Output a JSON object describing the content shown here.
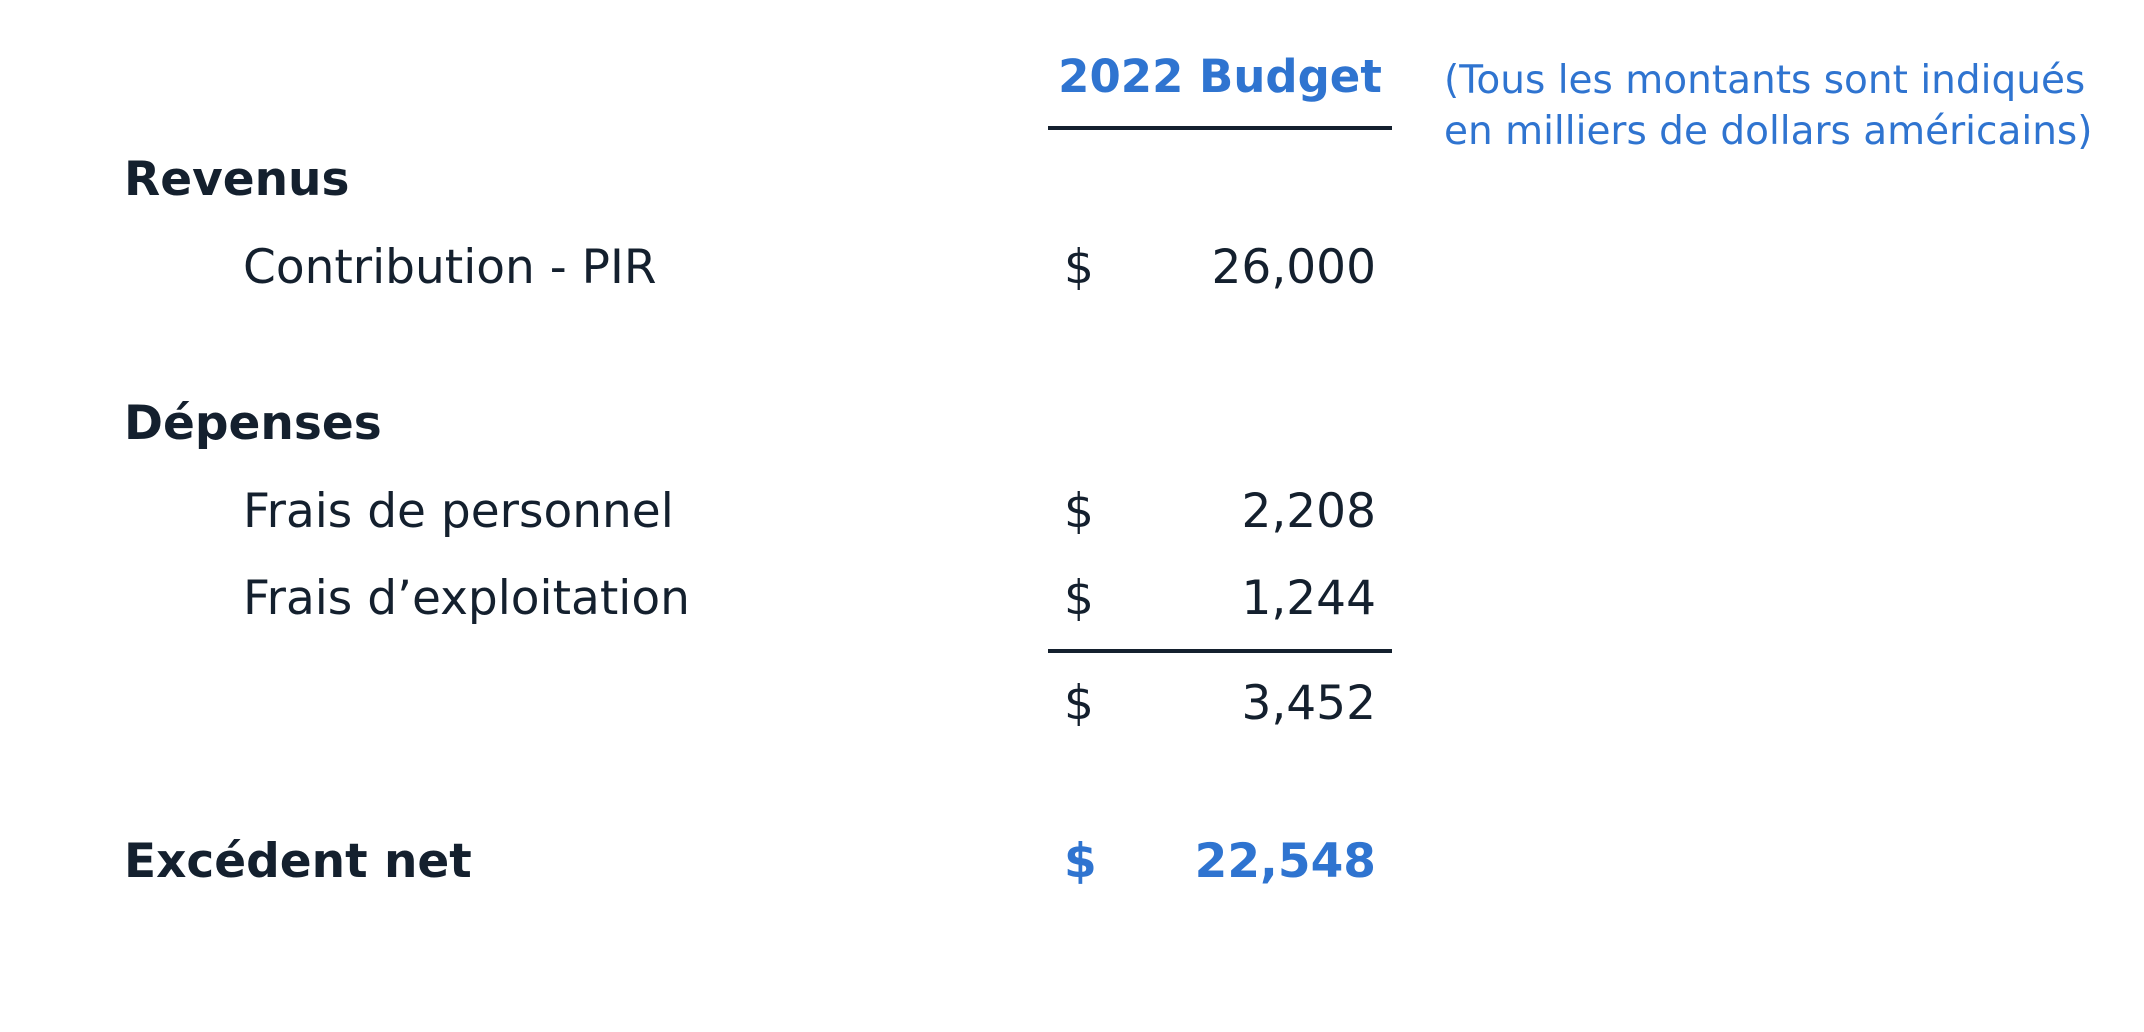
{
  "header": {
    "column_title": "2022 Budget",
    "note_line1": "(Tous les montants sont indiqués",
    "note_line2": "en milliers de dollars américains)"
  },
  "revenus": {
    "title": "Revenus",
    "items": [
      {
        "label": "Contribution - PIR",
        "currency": "$",
        "amount": "26,000"
      }
    ]
  },
  "depenses": {
    "title": "Dépenses",
    "items": [
      {
        "label": "Frais de personnel",
        "currency": "$",
        "amount": "2,208"
      },
      {
        "label": "Frais d’exploitation",
        "currency": "$",
        "amount": "1,244"
      }
    ],
    "total": {
      "currency": "$",
      "amount": "3,452"
    }
  },
  "excedent": {
    "title": "Excédent net",
    "currency": "$",
    "amount": "22,548"
  },
  "colors": {
    "accent": "#2f74d0",
    "text": "#14202e"
  }
}
